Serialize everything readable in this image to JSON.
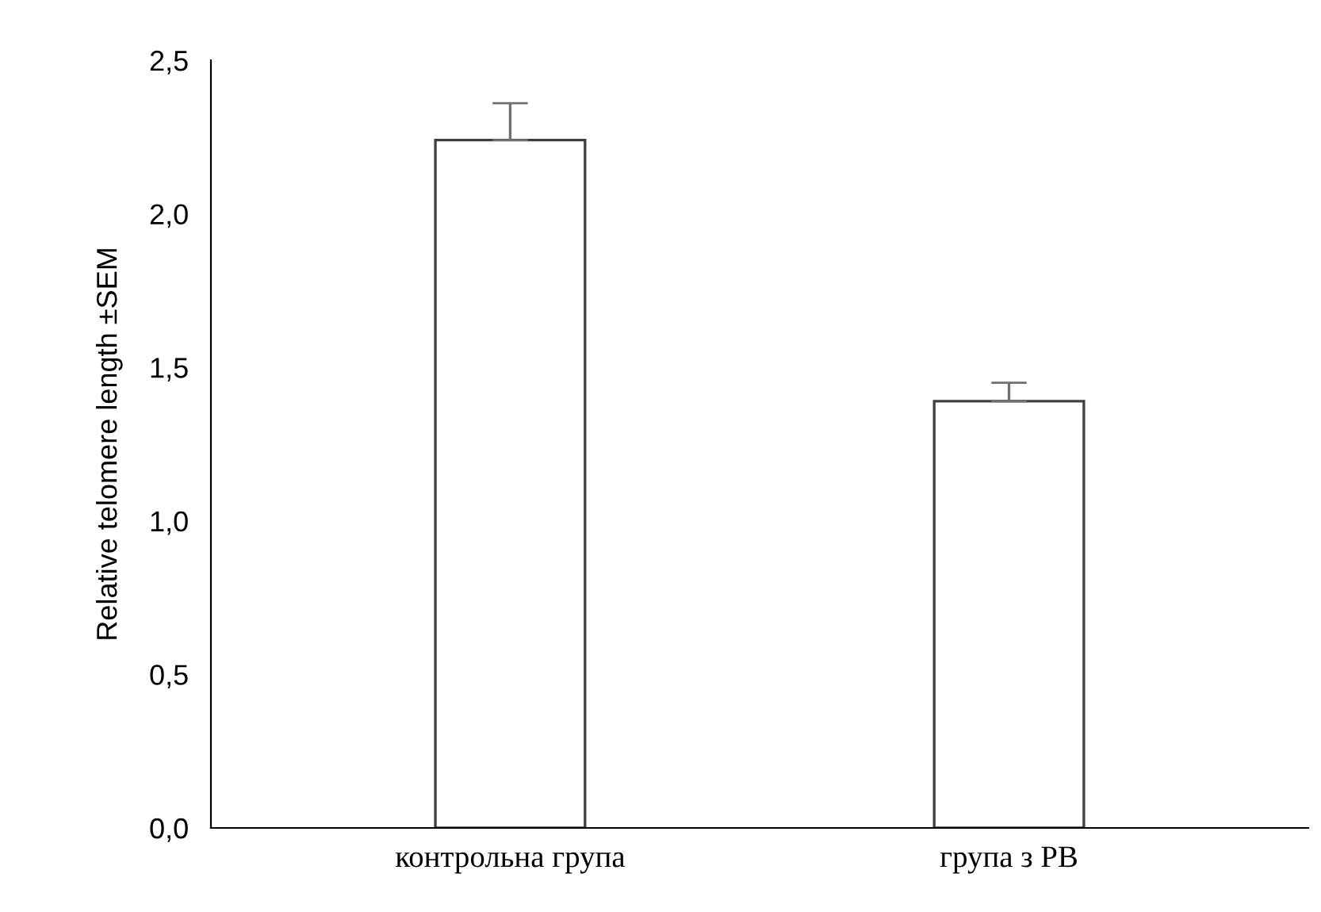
{
  "chart_data": {
    "type": "bar",
    "ylabel": "Relative telomere length ±SEM",
    "categories": [
      "контрольна група",
      "група з РВ"
    ],
    "values": [
      2.24,
      1.39
    ],
    "errors": [
      [
        2.24,
        2.36
      ],
      [
        1.39,
        1.45
      ]
    ],
    "color": "#ffffff",
    "ylim": [
      0,
      2.5
    ],
    "yticks": [
      {
        "value": 0,
        "label": "0,0"
      },
      {
        "value": 0.5,
        "label": "0,5"
      },
      {
        "value": 1,
        "label": "1,0"
      },
      {
        "value": 1.5,
        "label": "1,5"
      },
      {
        "value": 2,
        "label": "2,0"
      },
      {
        "value": 2.5,
        "label": "2,5"
      }
    ],
    "grid": false
  }
}
